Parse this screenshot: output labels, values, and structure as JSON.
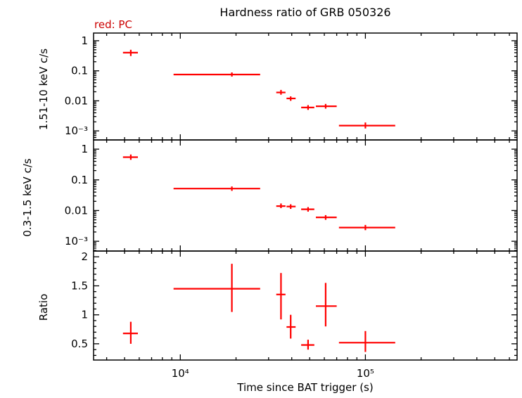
{
  "chart_data": {
    "type": "scatter",
    "title": "Hardness ratio of GRB 050326",
    "xlabel": "Time since BAT trigger (s)",
    "x_scale": "log",
    "xlim": [
      3400,
      660000
    ],
    "xticks": [
      {
        "value": 10000,
        "label": "10⁴"
      },
      {
        "value": 100000,
        "label": "10⁵"
      }
    ],
    "point_color": "#ff0000",
    "legend": {
      "text": "red: PC",
      "color": "#cc0000"
    },
    "panels": [
      {
        "ylabel": "1.51-10 keV c/s",
        "y_scale": "log",
        "ylim": [
          0.0005,
          1.8
        ],
        "yticks": [
          {
            "value": 1,
            "label": "1"
          },
          {
            "value": 0.1,
            "label": "0.1"
          },
          {
            "value": 0.01,
            "label": "0.01"
          },
          {
            "value": 0.001,
            "label": "10⁻³"
          }
        ],
        "points": [
          {
            "x": 5400,
            "xlo": 4900,
            "xhi": 5900,
            "y": 0.4,
            "ylo": 0.31,
            "yhi": 0.5
          },
          {
            "x": 19000,
            "xlo": 9200,
            "xhi": 27000,
            "y": 0.075,
            "ylo": 0.064,
            "yhi": 0.088
          },
          {
            "x": 35000,
            "xlo": 33000,
            "xhi": 37000,
            "y": 0.019,
            "ylo": 0.016,
            "yhi": 0.023
          },
          {
            "x": 39500,
            "xlo": 37500,
            "xhi": 42000,
            "y": 0.012,
            "ylo": 0.01,
            "yhi": 0.014
          },
          {
            "x": 49000,
            "xlo": 45000,
            "xhi": 53000,
            "y": 0.006,
            "ylo": 0.005,
            "yhi": 0.0072
          },
          {
            "x": 61000,
            "xlo": 54000,
            "xhi": 70000,
            "y": 0.0066,
            "ylo": 0.0055,
            "yhi": 0.0079
          },
          {
            "x": 100000,
            "xlo": 72000,
            "xhi": 145000,
            "y": 0.0015,
            "ylo": 0.0012,
            "yhi": 0.0019
          }
        ]
      },
      {
        "ylabel": "0.3-1.5 keV c/s",
        "y_scale": "log",
        "ylim": [
          0.00048,
          2.0
        ],
        "yticks": [
          {
            "value": 1,
            "label": "1"
          },
          {
            "value": 0.1,
            "label": "0.1"
          },
          {
            "value": 0.01,
            "label": "0.01"
          },
          {
            "value": 0.001,
            "label": "10⁻³"
          }
        ],
        "points": [
          {
            "x": 5400,
            "xlo": 4900,
            "xhi": 5900,
            "y": 0.55,
            "ylo": 0.45,
            "yhi": 0.67
          },
          {
            "x": 19000,
            "xlo": 9200,
            "xhi": 27000,
            "y": 0.052,
            "ylo": 0.044,
            "yhi": 0.061
          },
          {
            "x": 35000,
            "xlo": 33000,
            "xhi": 37000,
            "y": 0.014,
            "ylo": 0.012,
            "yhi": 0.017
          },
          {
            "x": 39500,
            "xlo": 37500,
            "xhi": 42000,
            "y": 0.0135,
            "ylo": 0.0113,
            "yhi": 0.016
          },
          {
            "x": 49000,
            "xlo": 45000,
            "xhi": 53000,
            "y": 0.011,
            "ylo": 0.0092,
            "yhi": 0.013
          },
          {
            "x": 61000,
            "xlo": 54000,
            "xhi": 70000,
            "y": 0.006,
            "ylo": 0.005,
            "yhi": 0.0071
          },
          {
            "x": 100000,
            "xlo": 72000,
            "xhi": 145000,
            "y": 0.0028,
            "ylo": 0.0023,
            "yhi": 0.0034
          }
        ]
      },
      {
        "ylabel": "Ratio",
        "y_scale": "linear",
        "ylim": [
          0.22,
          2.1
        ],
        "yticks": [
          {
            "value": 2,
            "label": "2"
          },
          {
            "value": 1.5,
            "label": "1.5"
          },
          {
            "value": 1,
            "label": "1"
          },
          {
            "value": 0.5,
            "label": "0.5"
          }
        ],
        "points": [
          {
            "x": 5400,
            "xlo": 4900,
            "xhi": 5900,
            "y": 0.68,
            "ylo": 0.5,
            "yhi": 0.88
          },
          {
            "x": 19000,
            "xlo": 9200,
            "xhi": 27000,
            "y": 1.45,
            "ylo": 1.05,
            "yhi": 1.88
          },
          {
            "x": 35000,
            "xlo": 33000,
            "xhi": 37000,
            "y": 1.35,
            "ylo": 0.92,
            "yhi": 1.72
          },
          {
            "x": 39500,
            "xlo": 37500,
            "xhi": 42000,
            "y": 0.79,
            "ylo": 0.59,
            "yhi": 1.0
          },
          {
            "x": 49000,
            "xlo": 45000,
            "xhi": 53000,
            "y": 0.48,
            "ylo": 0.4,
            "yhi": 0.57
          },
          {
            "x": 61000,
            "xlo": 54000,
            "xhi": 70000,
            "y": 1.15,
            "ylo": 0.8,
            "yhi": 1.55
          },
          {
            "x": 100000,
            "xlo": 72000,
            "xhi": 145000,
            "y": 0.52,
            "ylo": 0.36,
            "yhi": 0.72
          }
        ]
      }
    ]
  }
}
